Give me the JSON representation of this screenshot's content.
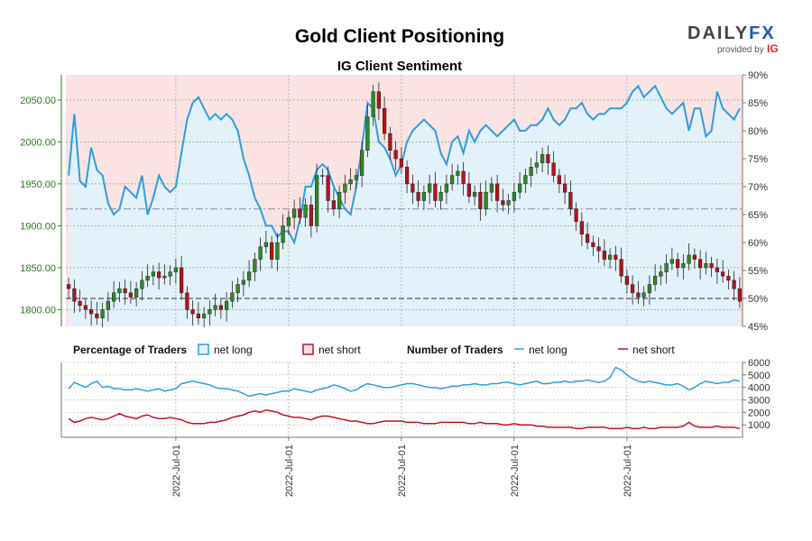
{
  "header": {
    "title": "Gold Client Positioning",
    "subtitle": "IG Client Sentiment"
  },
  "logo": {
    "brand_part1": "DAILY",
    "brand_part2": "FX",
    "provided_by": "provided by",
    "ig": "IG"
  },
  "legend": {
    "percentage_heading": "Percentage of Traders",
    "pct_long_label": "net long",
    "pct_short_label": "net short",
    "number_heading": "Number of Traders",
    "num_long_label": "net long",
    "num_short_label": "net short"
  },
  "colors": {
    "long": "#2d9de0",
    "short": "#c0112b",
    "candle_up": "#2e8b22",
    "candle_down": "#b5121b",
    "shade_long": "#e3f1fb",
    "shade_short": "#fbe3e3",
    "left_axis": "#2a7a1e"
  },
  "chart_data": [
    {
      "type": "candlestick",
      "name": "Gold price",
      "title": "Gold Client Positioning",
      "subtitle": "IG Client Sentiment",
      "ylim": [
        1780,
        2080
      ],
      "yticks": [
        "1800.00",
        "1850.00",
        "1900.00",
        "1950.00",
        "2000.00",
        "2050.00"
      ],
      "ytick_values": [
        1800,
        1850,
        1900,
        1950,
        2000,
        2050
      ],
      "x_count": 120,
      "close": [
        1825,
        1810,
        1805,
        1800,
        1795,
        1790,
        1800,
        1810,
        1820,
        1825,
        1820,
        1815,
        1825,
        1835,
        1840,
        1845,
        1838,
        1840,
        1845,
        1850,
        1820,
        1800,
        1795,
        1790,
        1795,
        1800,
        1805,
        1800,
        1810,
        1820,
        1830,
        1835,
        1845,
        1860,
        1875,
        1880,
        1860,
        1880,
        1900,
        1910,
        1920,
        1910,
        1925,
        1900,
        1960,
        1960,
        1930,
        1920,
        1940,
        1950,
        1955,
        1960,
        1990,
        2030,
        2060,
        2040,
        2010,
        1990,
        1980,
        1970,
        1950,
        1940,
        1930,
        1940,
        1950,
        1930,
        1940,
        1950,
        1960,
        1965,
        1950,
        1935,
        1940,
        1920,
        1940,
        1950,
        1930,
        1925,
        1930,
        1940,
        1950,
        1960,
        1970,
        1975,
        1985,
        1975,
        1960,
        1950,
        1940,
        1920,
        1905,
        1890,
        1880,
        1875,
        1870,
        1860,
        1865,
        1860,
        1840,
        1830,
        1820,
        1815,
        1820,
        1830,
        1840,
        1845,
        1855,
        1860,
        1850,
        1855,
        1865,
        1860,
        1850,
        1855,
        1850,
        1845,
        1840,
        1835,
        1825,
        1810
      ],
      "y2lim": [
        45,
        90
      ],
      "y2ticks": [
        "45%",
        "50%",
        "55%",
        "60%",
        "65%",
        "70%",
        "75%",
        "80%",
        "85%",
        "90%"
      ],
      "y2tick_values": [
        45,
        50,
        55,
        60,
        65,
        70,
        75,
        80,
        85,
        90
      ],
      "pct_long": [
        72,
        83,
        71,
        70,
        77,
        73,
        72,
        67,
        65,
        66,
        70,
        69,
        68,
        72,
        65,
        68,
        72,
        70,
        69,
        70,
        76,
        82,
        85,
        86,
        84,
        82,
        83,
        82,
        83,
        82,
        80,
        75,
        72,
        68,
        66,
        63,
        63,
        61,
        62,
        62,
        60,
        64,
        70,
        70,
        73,
        74,
        73,
        70,
        68,
        66,
        65,
        70,
        77,
        85,
        84,
        78,
        77,
        75,
        72,
        74,
        78,
        80,
        81,
        82,
        81,
        80,
        76,
        74,
        78,
        79,
        76,
        80,
        78,
        80,
        81,
        80,
        79,
        80,
        81,
        82,
        80,
        80,
        81,
        81,
        82,
        84,
        82,
        81,
        82,
        84,
        84,
        85,
        83,
        82,
        83,
        83,
        84,
        84,
        84,
        85,
        87,
        88,
        86,
        87,
        88,
        86,
        84,
        83,
        84,
        85,
        80,
        84,
        84,
        79,
        80,
        87,
        84,
        83,
        82,
        84
      ],
      "pct_threshold": 50,
      "pct_dashed_level": 66
    },
    {
      "type": "line",
      "name": "Number of Traders",
      "ylim": [
        0,
        6000
      ],
      "yticks": [
        "1000",
        "2000",
        "3000",
        "4000",
        "5000",
        "6000"
      ],
      "ytick_values": [
        1000,
        2000,
        3000,
        4000,
        5000,
        6000
      ],
      "x_tick_labels": [
        "2022-Jul-01",
        "2022-Jul-01",
        "2022-Jul-01",
        "2022-Jul-01",
        "2022-Jul-01"
      ],
      "x_tick_positions": [
        19,
        39,
        59,
        79,
        99
      ],
      "series": [
        {
          "name": "net long",
          "values": [
            3900,
            4400,
            4200,
            4000,
            4300,
            4500,
            4000,
            4100,
            3900,
            3900,
            3800,
            3800,
            3900,
            3800,
            3700,
            3800,
            3900,
            3700,
            3800,
            3900,
            4300,
            4400,
            4500,
            4400,
            4300,
            4200,
            4000,
            3900,
            3900,
            3800,
            3700,
            3500,
            3300,
            3400,
            3500,
            3400,
            3500,
            3600,
            3700,
            3700,
            3900,
            3800,
            3700,
            3600,
            3800,
            3900,
            4000,
            4200,
            4100,
            3900,
            3700,
            3800,
            4100,
            4300,
            4200,
            4100,
            4000,
            4000,
            4100,
            4200,
            4300,
            4300,
            4200,
            4100,
            4000,
            4000,
            3900,
            4000,
            4100,
            4100,
            4200,
            4200,
            4300,
            4200,
            4200,
            4300,
            4300,
            4400,
            4400,
            4300,
            4200,
            4300,
            4400,
            4500,
            4300,
            4300,
            4400,
            4400,
            4500,
            4400,
            4500,
            4500,
            4600,
            4500,
            4400,
            4500,
            4800,
            5600,
            5400,
            5000,
            4700,
            4500,
            4400,
            4500,
            4400,
            4300,
            4200,
            4200,
            4300,
            4100,
            3800,
            4000,
            4300,
            4500,
            4400,
            4300,
            4400,
            4400,
            4600,
            4500
          ]
        },
        {
          "name": "net short",
          "values": [
            1500,
            1200,
            1300,
            1500,
            1600,
            1500,
            1400,
            1500,
            1700,
            1900,
            1700,
            1600,
            1500,
            1700,
            1800,
            1600,
            1500,
            1500,
            1600,
            1500,
            1400,
            1200,
            1100,
            1100,
            1100,
            1200,
            1200,
            1300,
            1400,
            1600,
            1700,
            1800,
            2000,
            2100,
            2000,
            2200,
            2100,
            2000,
            1800,
            1700,
            1600,
            1600,
            1500,
            1400,
            1600,
            1700,
            1700,
            1600,
            1500,
            1400,
            1300,
            1300,
            1200,
            1100,
            1100,
            1200,
            1300,
            1300,
            1300,
            1300,
            1200,
            1200,
            1200,
            1100,
            1100,
            1100,
            1200,
            1200,
            1200,
            1200,
            1200,
            1100,
            1100,
            1200,
            1100,
            1100,
            1100,
            1000,
            1000,
            1100,
            1000,
            1000,
            1000,
            900,
            900,
            800,
            800,
            800,
            800,
            800,
            700,
            700,
            800,
            800,
            800,
            800,
            700,
            700,
            700,
            800,
            700,
            700,
            800,
            700,
            700,
            800,
            800,
            800,
            800,
            900,
            1200,
            900,
            800,
            800,
            800,
            900,
            800,
            800,
            800,
            700
          ]
        }
      ]
    }
  ]
}
